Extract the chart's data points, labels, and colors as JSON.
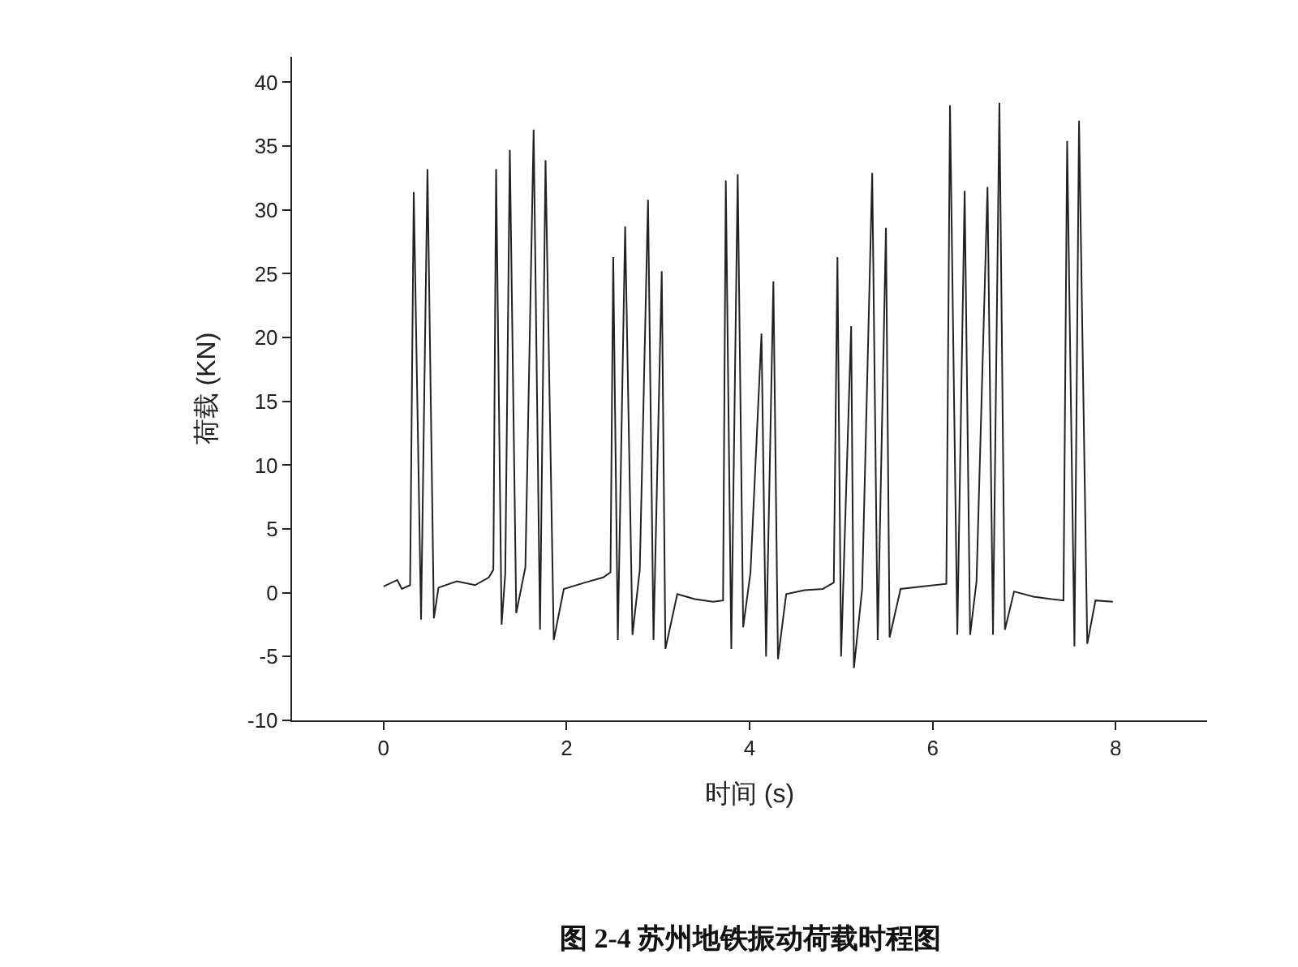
{
  "chart_data": {
    "type": "line",
    "xlabel": "时间 (s)",
    "ylabel": "荷载 (KN)",
    "annotations": [
      "图 2-4 苏州地铁振动荷载时程图"
    ],
    "xlim": [
      -1,
      9
    ],
    "xticks": [
      0,
      2,
      4,
      6,
      8
    ],
    "ylim": [
      -10,
      42
    ],
    "yticks": [
      -10,
      -5,
      0,
      5,
      10,
      15,
      20,
      25,
      30,
      35,
      40
    ],
    "series": [
      {
        "color": "#222222",
        "x": [
          0,
          0.15,
          0.2,
          0.29,
          0.33,
          0.41,
          0.48,
          0.55,
          0.6,
          0.8,
          1.0,
          1.15,
          1.2,
          1.23,
          1.29,
          1.33,
          1.38,
          1.45,
          1.55,
          1.64,
          1.71,
          1.77,
          1.86,
          1.97,
          2.2,
          2.4,
          2.48,
          2.51,
          2.56,
          2.64,
          2.72,
          2.8,
          2.89,
          2.95,
          3.04,
          3.08,
          3.21,
          3.4,
          3.6,
          3.71,
          3.74,
          3.8,
          3.87,
          3.93,
          4.01,
          4.13,
          4.18,
          4.26,
          4.31,
          4.4,
          4.6,
          4.8,
          4.92,
          4.96,
          5.0,
          5.11,
          5.14,
          5.23,
          5.34,
          5.4,
          5.49,
          5.53,
          5.65,
          5.9,
          6.15,
          6.19,
          6.27,
          6.35,
          6.41,
          6.48,
          6.6,
          6.66,
          6.73,
          6.79,
          6.89,
          7.1,
          7.3,
          7.43,
          7.47,
          7.55,
          7.6,
          7.69,
          7.78,
          7.97
        ],
        "values": [
          0.5,
          1.0,
          0.3,
          0.6,
          31.4,
          -2.1,
          33.2,
          -2.0,
          0.4,
          0.9,
          0.6,
          1.2,
          1.8,
          33.2,
          -2.5,
          1.5,
          34.7,
          -1.6,
          2.0,
          36.3,
          -2.9,
          33.9,
          -3.7,
          0.3,
          0.8,
          1.2,
          1.6,
          26.3,
          -3.7,
          28.7,
          -3.3,
          1.8,
          30.8,
          -3.7,
          25.2,
          -4.4,
          -0.1,
          -0.5,
          -0.7,
          -0.6,
          32.3,
          -4.4,
          32.8,
          -2.7,
          1.6,
          20.3,
          -5.0,
          24.4,
          -5.2,
          -0.1,
          0.2,
          0.3,
          0.8,
          26.3,
          -5.0,
          20.9,
          -5.9,
          0.3,
          32.9,
          -3.7,
          28.6,
          -3.5,
          0.3,
          0.5,
          0.7,
          38.2,
          -3.3,
          31.5,
          -3.3,
          0.9,
          31.8,
          -3.3,
          38.4,
          -2.9,
          0.1,
          -0.3,
          -0.5,
          -0.6,
          35.4,
          -4.2,
          37.0,
          -4.0,
          -0.6,
          -0.7
        ]
      }
    ]
  }
}
